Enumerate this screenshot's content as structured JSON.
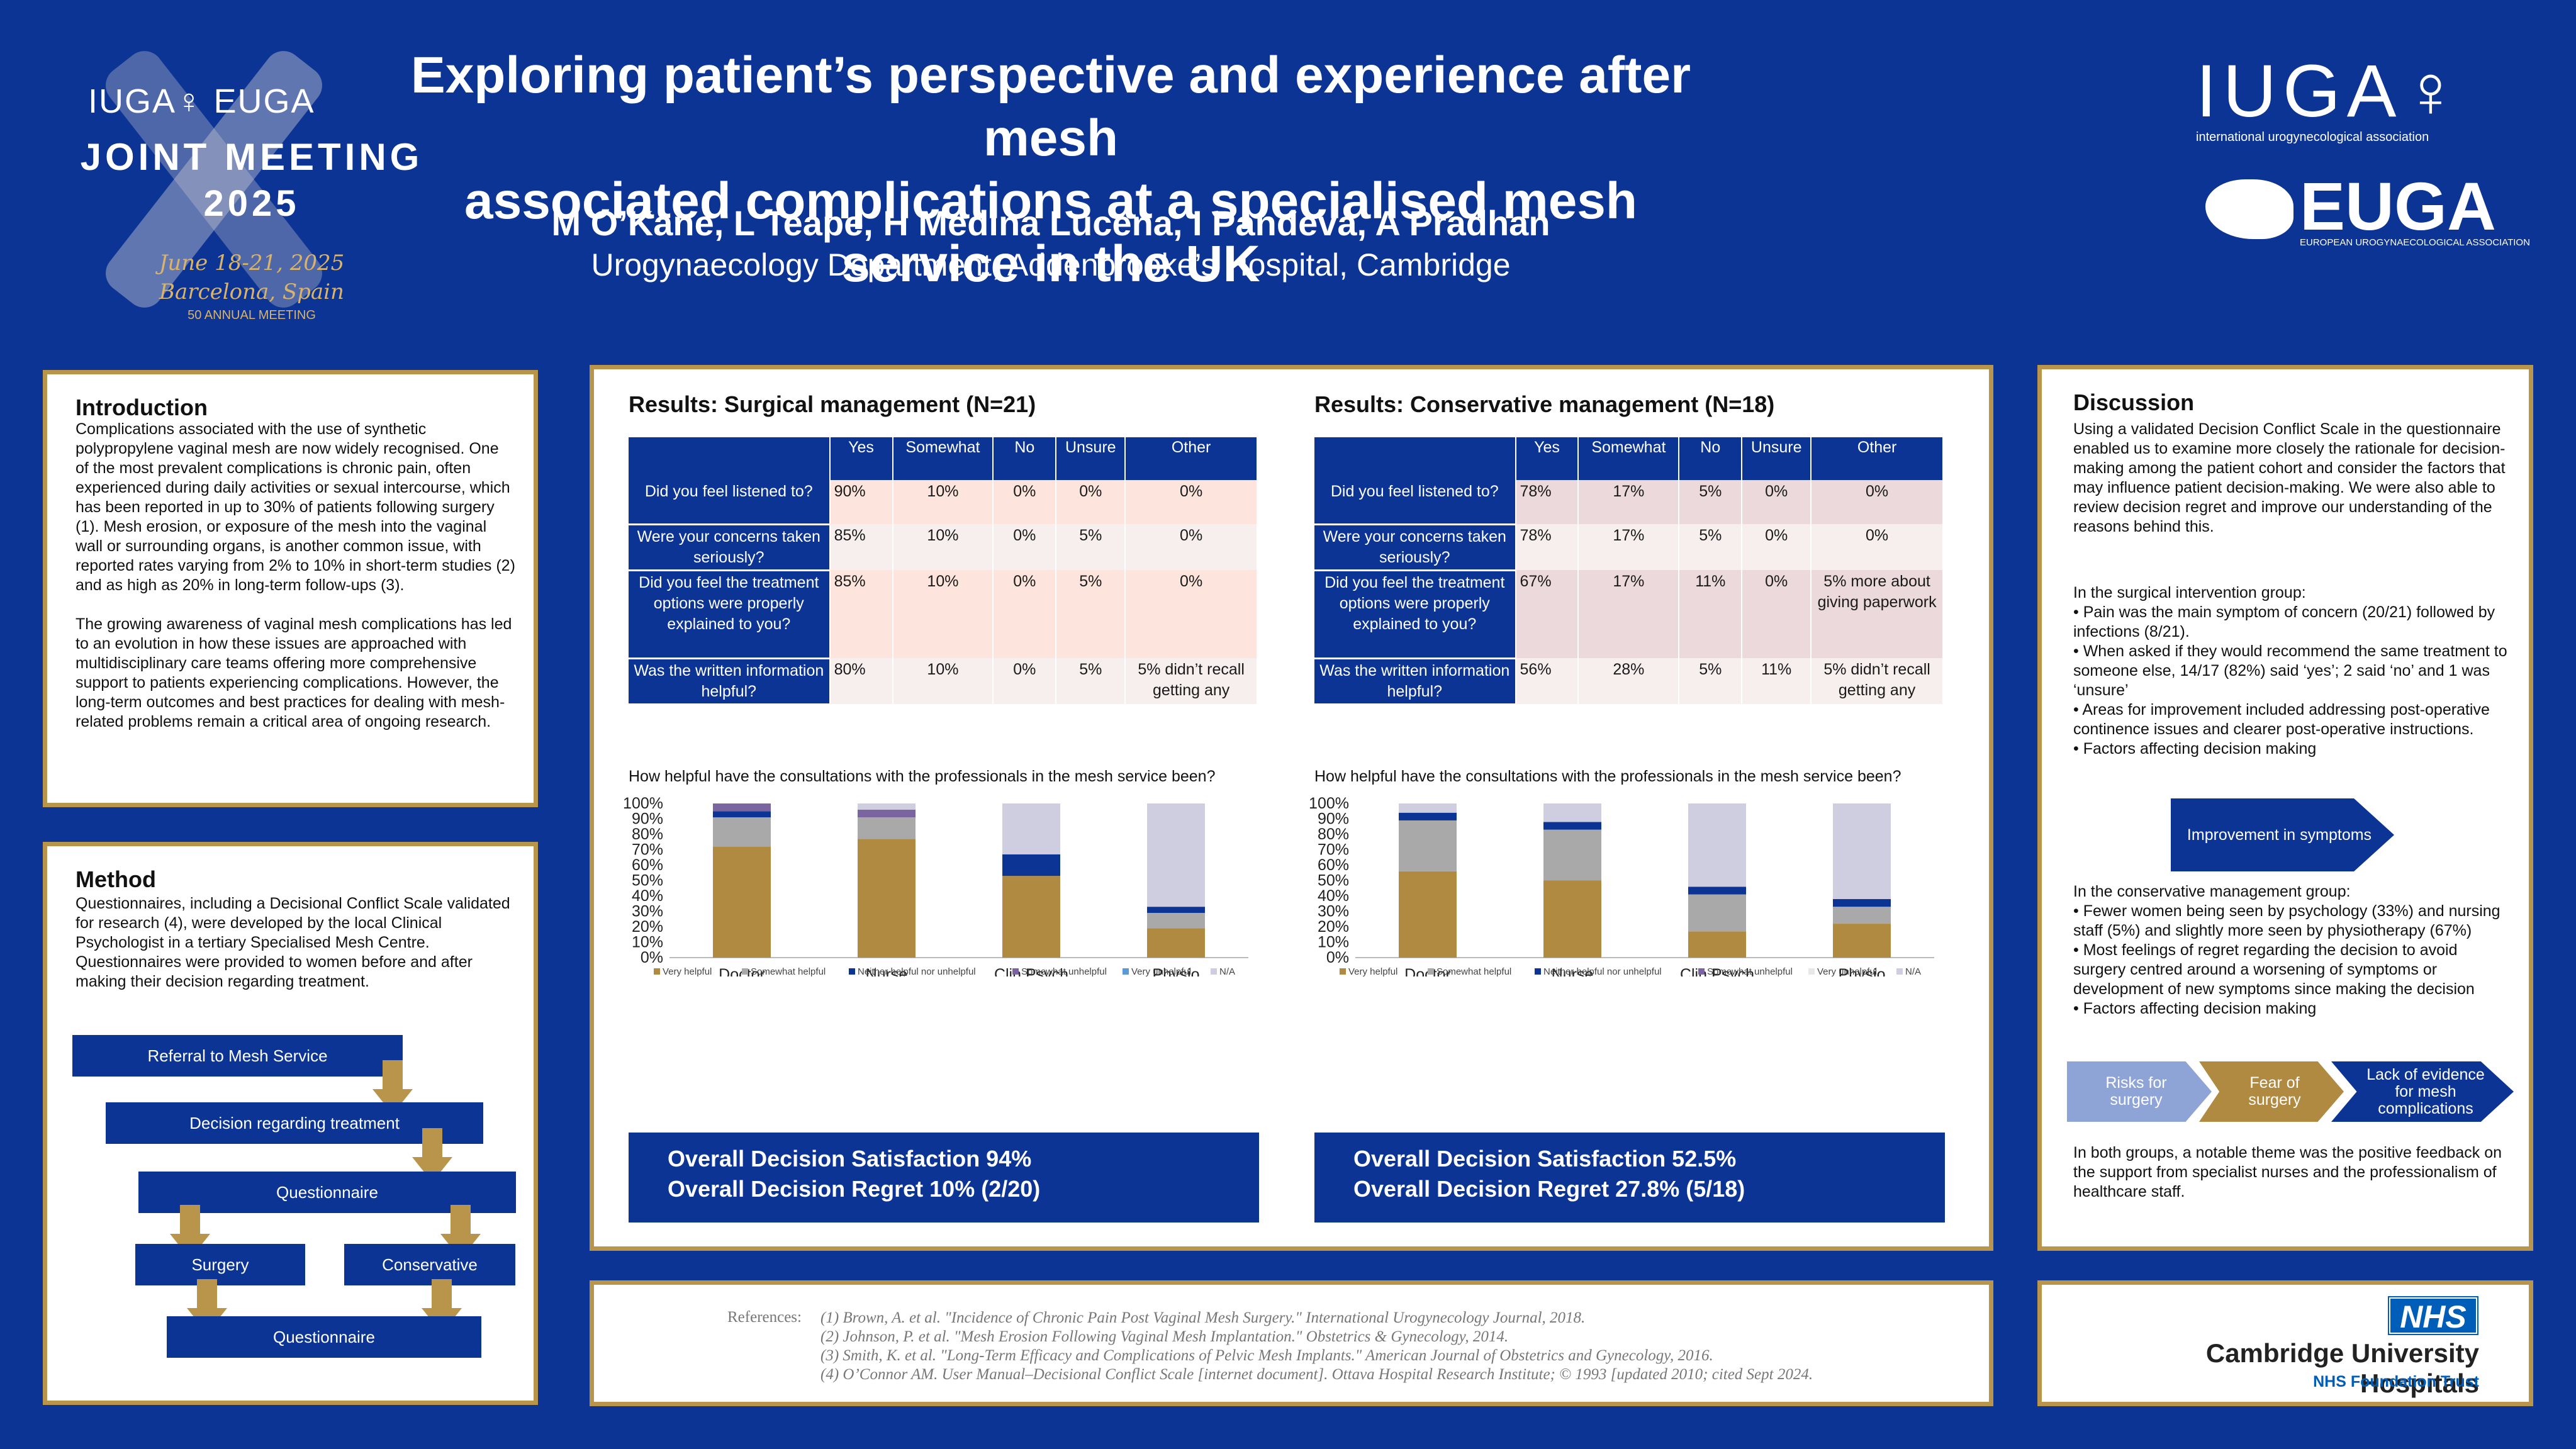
{
  "header": {
    "title_line1": "Exploring patient’s perspective and experience after mesh",
    "title_line2": "associated complications at a specialised mesh service in the UK",
    "authors": "M O’Kane, L Teape, H Medina Lucena, I Pandeva, A Pradhan",
    "affiliation": "Urogynaecology Department, Addenbrooke’s Hospital, Cambridge"
  },
  "meeting_logo": {
    "brand": "IUGA♀ EUGA",
    "line1": "JOINT MEETING",
    "line2": "2025",
    "dates": "June 18-21, 2025",
    "place": "Barcelona, Spain",
    "anniversary": "50 ANNUAL MEETING"
  },
  "iuga_logo": {
    "name": "IUGA♀",
    "sub": "international urogynecological association"
  },
  "euga_logo": {
    "name": "EUGA",
    "sub": "EUROPEAN UROGYNAECOLOGICAL ASSOCIATION"
  },
  "introduction": {
    "title": "Introduction",
    "p1": "Complications associated with the use of synthetic polypropylene vaginal mesh are now widely recognised. One of the most prevalent complications is chronic pain, often experienced during daily activities or sexual intercourse, which has been reported in up to 30% of patients following surgery (1). Mesh erosion, or exposure of the mesh into the vaginal wall or surrounding organs, is another common issue, with reported rates varying from 2% to 10% in short-term studies (2) and as high as 20% in long-term follow-ups (3).",
    "p2": "The growing awareness of vaginal mesh complications has led to an evolution in how these issues are approached with multidisciplinary care teams offering more comprehensive support to patients experiencing complications. However, the long-term outcomes and best practices for dealing with mesh-related problems remain a critical area of ongoing research."
  },
  "method": {
    "title": "Method",
    "text": "Questionnaires, including a Decisional Conflict Scale validated for research (4), were developed by the local Clinical Psychologist in a tertiary Specialised Mesh Centre. Questionnaires were provided to women before and after making their decision regarding treatment.",
    "flow": {
      "referral": "Referral to Mesh Service",
      "decision": "Decision regarding treatment",
      "questionnaire1": "Questionnaire",
      "surgery": "Surgery",
      "conservative": "Conservative",
      "questionnaire2": "Questionnaire"
    }
  },
  "results": {
    "surgical": {
      "title": "Results: Surgical management (N=21)",
      "columns": [
        "Yes",
        "Somewhat",
        "No",
        "Unsure",
        "Other"
      ],
      "rows": [
        {
          "q": "Did you feel listened to?",
          "v": [
            "90%",
            "10%",
            "0%",
            "0%",
            "0%"
          ]
        },
        {
          "q": "Were your concerns taken seriously?",
          "v": [
            "85%",
            "10%",
            "0%",
            "5%",
            "0%"
          ]
        },
        {
          "q": "Did you feel the treatment options were properly explained to you?",
          "v": [
            "85%",
            "10%",
            "0%",
            "5%",
            "0%"
          ]
        },
        {
          "q": "Was the written information helpful?",
          "v": [
            "80%",
            "10%",
            "0%",
            "5%",
            "5% didn’t recall getting any"
          ]
        }
      ],
      "question": "How helpful have the consultations with the professionals in the mesh service been?",
      "summary1": "Overall Decision Satisfaction 94%",
      "summary2": "Overall Decision Regret 10% (2/20)"
    },
    "conservative": {
      "title": "Results: Conservative management (N=18)",
      "columns": [
        "Yes",
        "Somewhat",
        "No",
        "Unsure",
        "Other"
      ],
      "rows": [
        {
          "q": "Did you feel listened to?",
          "v": [
            "78%",
            "17%",
            "5%",
            "0%",
            "0%"
          ]
        },
        {
          "q": "Were your concerns taken seriously?",
          "v": [
            "78%",
            "17%",
            "5%",
            "0%",
            "0%"
          ]
        },
        {
          "q": "Did you feel the treatment options were properly explained to you?",
          "v": [
            "67%",
            "17%",
            "11%",
            "0%",
            "5% more about giving paperwork"
          ]
        },
        {
          "q": "Was the written information helpful?",
          "v": [
            "56%",
            "28%",
            "5%",
            "11%",
            "5% didn’t recall getting any"
          ]
        }
      ],
      "question": "How helpful have the consultations with the professionals in the mesh service been?",
      "summary1": "Overall Decision Satisfaction 52.5%",
      "summary2": "Overall Decision Regret 27.8%  (5/18)"
    }
  },
  "chart_data": [
    {
      "type": "bar",
      "stacked": true,
      "title": "",
      "categories": [
        "Doctor",
        "Nurse",
        "Clin Psych",
        "Physio"
      ],
      "y_ticks": [
        "0%",
        "10%",
        "20%",
        "30%",
        "40%",
        "50%",
        "60%",
        "70%",
        "80%",
        "90%",
        "100%"
      ],
      "ylim": [
        0,
        100
      ],
      "grid": false,
      "legend_position": "bottom",
      "series": [
        {
          "name": "Very helpful",
          "color": "#b08a40",
          "values": [
            72,
            77,
            53,
            19
          ]
        },
        {
          "name": "Somewhat helpful",
          "color": "#a9a9a9",
          "values": [
            19,
            14,
            0,
            10
          ]
        },
        {
          "name": "Neither helpful nor unhelpful",
          "color": "#0b3494",
          "values": [
            4,
            0,
            14,
            4
          ]
        },
        {
          "name": "Somewhat unhelpful",
          "color": "#7a65a0",
          "values": [
            5,
            5,
            0,
            0
          ]
        },
        {
          "name": "Very unhelpful",
          "color": "#5b9bd5",
          "values": [
            0,
            0,
            0,
            0
          ]
        },
        {
          "name": "N/A",
          "color": "#cfcde0",
          "values": [
            0,
            4,
            33,
            67
          ]
        }
      ]
    },
    {
      "type": "bar",
      "stacked": true,
      "title": "",
      "categories": [
        "Doctor",
        "Nurse",
        "Clin Psych",
        "Physio"
      ],
      "y_ticks": [
        "0%",
        "10%",
        "20%",
        "30%",
        "40%",
        "50%",
        "60%",
        "70%",
        "80%",
        "90%",
        "100%"
      ],
      "ylim": [
        0,
        100
      ],
      "grid": false,
      "legend_position": "bottom",
      "series": [
        {
          "name": "Very helpful",
          "color": "#b08a40",
          "values": [
            56,
            50,
            17,
            22
          ]
        },
        {
          "name": "Somewhat helpful",
          "color": "#a9a9a9",
          "values": [
            33,
            33,
            24,
            11
          ]
        },
        {
          "name": "Neither helpful nor unhelpful",
          "color": "#0b3494",
          "values": [
            5,
            5,
            5,
            5
          ]
        },
        {
          "name": "Somewhat unhelpful",
          "color": "#7a65a0",
          "values": [
            0,
            0,
            0,
            0
          ]
        },
        {
          "name": "Very unhelpful",
          "color": "#e8e8e8",
          "values": [
            0,
            0,
            0,
            0
          ]
        },
        {
          "name": "N/A",
          "color": "#cfcde0",
          "values": [
            6,
            12,
            54,
            62
          ]
        }
      ]
    }
  ],
  "discussion": {
    "title": "Discussion",
    "p1": "Using a validated Decision Conflict Scale in the questionnaire enabled us to examine more closely the rationale for decision-making among the patient cohort and consider the factors that may influence patient decision-making. We were also able to review decision regret and improve our understanding of the reasons behind this.",
    "surgical_intro": "In the surgical intervention group:",
    "surgical_points": [
      "•  Pain was the main symptom of concern (20/21) followed by infections (8/21).",
      "•  When asked if they would recommend the same treatment to someone else, 14/17 (82%) said ‘yes’; 2 said ‘no’ and 1 was ‘unsure’",
      "•  Areas for improvement included addressing post-operative continence issues  and clearer post-operative instructions.",
      "•  Factors affecting decision making"
    ],
    "chevron_surgical": "Improvement in symptoms",
    "conservative_intro": "In the conservative management group:",
    "conservative_points": [
      "• Fewer women being seen by psychology (33%) and nursing staff (5%) and slightly more seen by physiotherapy (67%)",
      "• Most feelings of regret regarding the decision to avoid surgery centred around a worsening of symptoms or development of new symptoms since making the decision",
      "• Factors affecting decision making"
    ],
    "chevrons": [
      "Risks for surgery",
      "Fear of surgery",
      "Lack of evidence for mesh complications"
    ],
    "conclusion": "In both groups, a notable theme was the positive feedback on the support from specialist nurses and the professionalism of healthcare staff."
  },
  "references": {
    "label": "References:",
    "items": [
      "(1) Brown, A. et al. \"Incidence of Chronic Pain Post Vaginal Mesh Surgery.\" International Urogynecology Journal, 2018.",
      "(2) Johnson, P. et al. \"Mesh Erosion Following Vaginal Mesh Implantation.\" Obstetrics & Gynecology, 2014.",
      "(3) Smith, K. et al. \"Long-Term Efficacy and Complications of Pelvic Mesh Implants.\" American Journal of Obstetrics and Gynecology, 2016.",
      "(4) O’Connor AM. User Manual–Decisional Conflict Scale [internet document]. Ottava Hospital Research Institute; © 1993 [updated 2010; cited Sept 2024."
    ]
  },
  "nhs_logo": {
    "badge": "NHS",
    "name": "Cambridge University Hospitals",
    "trust": "NHS Foundation Trust"
  },
  "colors": {
    "background": "#0b3494",
    "gold": "#b8954a",
    "table_tint_surgical": "#fde4dc",
    "table_tint_conservative": "#ecd9dc",
    "chevron_light": "#8fa4d6",
    "chevron_gold": "#b08a40"
  }
}
